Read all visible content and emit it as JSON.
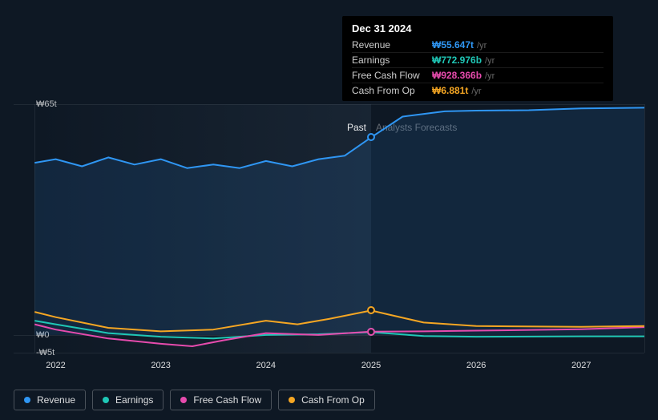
{
  "chart": {
    "type": "line",
    "background_color": "#0e1824",
    "y_axis": {
      "ticks": [
        {
          "value": 65,
          "label": "₩65t"
        },
        {
          "value": 0,
          "label": "₩0"
        },
        {
          "value": -5,
          "label": "-₩5t"
        }
      ],
      "min": -5,
      "max": 65,
      "gridline_color": "rgba(255,255,255,0.08)"
    },
    "x_axis": {
      "min": 2021.6,
      "max": 2027.6,
      "ticks": [
        {
          "value": 2022,
          "label": "2022"
        },
        {
          "value": 2023,
          "label": "2023"
        },
        {
          "value": 2024,
          "label": "2024"
        },
        {
          "value": 2025,
          "label": "2025"
        },
        {
          "value": 2026,
          "label": "2026"
        },
        {
          "value": 2027,
          "label": "2027"
        }
      ],
      "tick_color": "rgba(255,255,255,0.85)",
      "tick_fontsize": 11
    },
    "regions": {
      "past": {
        "label": "Past",
        "end_x": 2025.0
      },
      "forecast": {
        "label": "Analysts Forecasts",
        "start_x": 2025.0
      },
      "highlight_start_x": 2021.8
    },
    "series": [
      {
        "key": "revenue",
        "label": "Revenue",
        "color": "#2f96f3",
        "fill": true,
        "fill_opacity": 0.12,
        "line_width": 2,
        "data": [
          [
            2021.8,
            48.5
          ],
          [
            2022.0,
            49.5
          ],
          [
            2022.25,
            47.5
          ],
          [
            2022.5,
            50.0
          ],
          [
            2022.75,
            48.0
          ],
          [
            2023.0,
            49.5
          ],
          [
            2023.25,
            47.0
          ],
          [
            2023.5,
            48.0
          ],
          [
            2023.75,
            47.0
          ],
          [
            2024.0,
            49.0
          ],
          [
            2024.25,
            47.5
          ],
          [
            2024.5,
            49.5
          ],
          [
            2024.75,
            50.5
          ],
          [
            2025.0,
            55.647
          ],
          [
            2025.3,
            61.5
          ],
          [
            2025.7,
            63.0
          ],
          [
            2026.0,
            63.2
          ],
          [
            2026.5,
            63.3
          ],
          [
            2027.0,
            63.8
          ],
          [
            2027.6,
            64.0
          ]
        ]
      },
      {
        "key": "earnings",
        "label": "Earnings",
        "color": "#1fc7b6",
        "line_width": 2,
        "data": [
          [
            2021.8,
            4.0
          ],
          [
            2022.0,
            3.0
          ],
          [
            2022.5,
            0.5
          ],
          [
            2023.0,
            -0.5
          ],
          [
            2023.5,
            -1.0
          ],
          [
            2024.0,
            0.0
          ],
          [
            2024.5,
            0.2
          ],
          [
            2025.0,
            0.773
          ],
          [
            2025.5,
            -0.3
          ],
          [
            2026.0,
            -0.5
          ],
          [
            2027.0,
            -0.4
          ],
          [
            2027.6,
            -0.4
          ]
        ]
      },
      {
        "key": "fcf",
        "label": "Free Cash Flow",
        "color": "#e64bad",
        "line_width": 2,
        "data": [
          [
            2021.8,
            3.0
          ],
          [
            2022.0,
            1.5
          ],
          [
            2022.5,
            -1.0
          ],
          [
            2023.0,
            -2.5
          ],
          [
            2023.3,
            -3.2
          ],
          [
            2023.6,
            -1.5
          ],
          [
            2024.0,
            0.5
          ],
          [
            2024.5,
            0.0
          ],
          [
            2025.0,
            0.928
          ],
          [
            2025.5,
            1.0
          ],
          [
            2026.0,
            1.2
          ],
          [
            2027.0,
            1.6
          ],
          [
            2027.6,
            2.2
          ]
        ]
      },
      {
        "key": "cfo",
        "label": "Cash From Op",
        "color": "#f5a623",
        "line_width": 2,
        "data": [
          [
            2021.8,
            6.5
          ],
          [
            2022.0,
            5.0
          ],
          [
            2022.5,
            2.0
          ],
          [
            2023.0,
            1.0
          ],
          [
            2023.5,
            1.5
          ],
          [
            2024.0,
            4.0
          ],
          [
            2024.3,
            3.0
          ],
          [
            2024.6,
            4.5
          ],
          [
            2025.0,
            6.881
          ],
          [
            2025.5,
            3.5
          ],
          [
            2026.0,
            2.5
          ],
          [
            2027.0,
            2.3
          ],
          [
            2027.6,
            2.5
          ]
        ]
      }
    ],
    "tooltip": {
      "title": "Dec 31 2024",
      "x": 2025.0,
      "rows": [
        {
          "label": "Revenue",
          "value": "₩55.647t",
          "unit": "/yr",
          "color": "#2f96f3",
          "series": "revenue",
          "marker_y": 55.647
        },
        {
          "label": "Earnings",
          "value": "₩772.976b",
          "unit": "/yr",
          "color": "#1fc7b6",
          "series": "earnings",
          "marker_y": 0.773
        },
        {
          "label": "Free Cash Flow",
          "value": "₩928.366b",
          "unit": "/yr",
          "color": "#e64bad",
          "series": "fcf",
          "marker_y": 0.928
        },
        {
          "label": "Cash From Op",
          "value": "₩6.881t",
          "unit": "/yr",
          "color": "#f5a623",
          "series": "cfo",
          "marker_y": 6.881
        }
      ]
    },
    "legend": [
      {
        "label": "Revenue",
        "color": "#2f96f3"
      },
      {
        "label": "Earnings",
        "color": "#1fc7b6"
      },
      {
        "label": "Free Cash Flow",
        "color": "#e64bad"
      },
      {
        "label": "Cash From Op",
        "color": "#f5a623"
      }
    ]
  }
}
